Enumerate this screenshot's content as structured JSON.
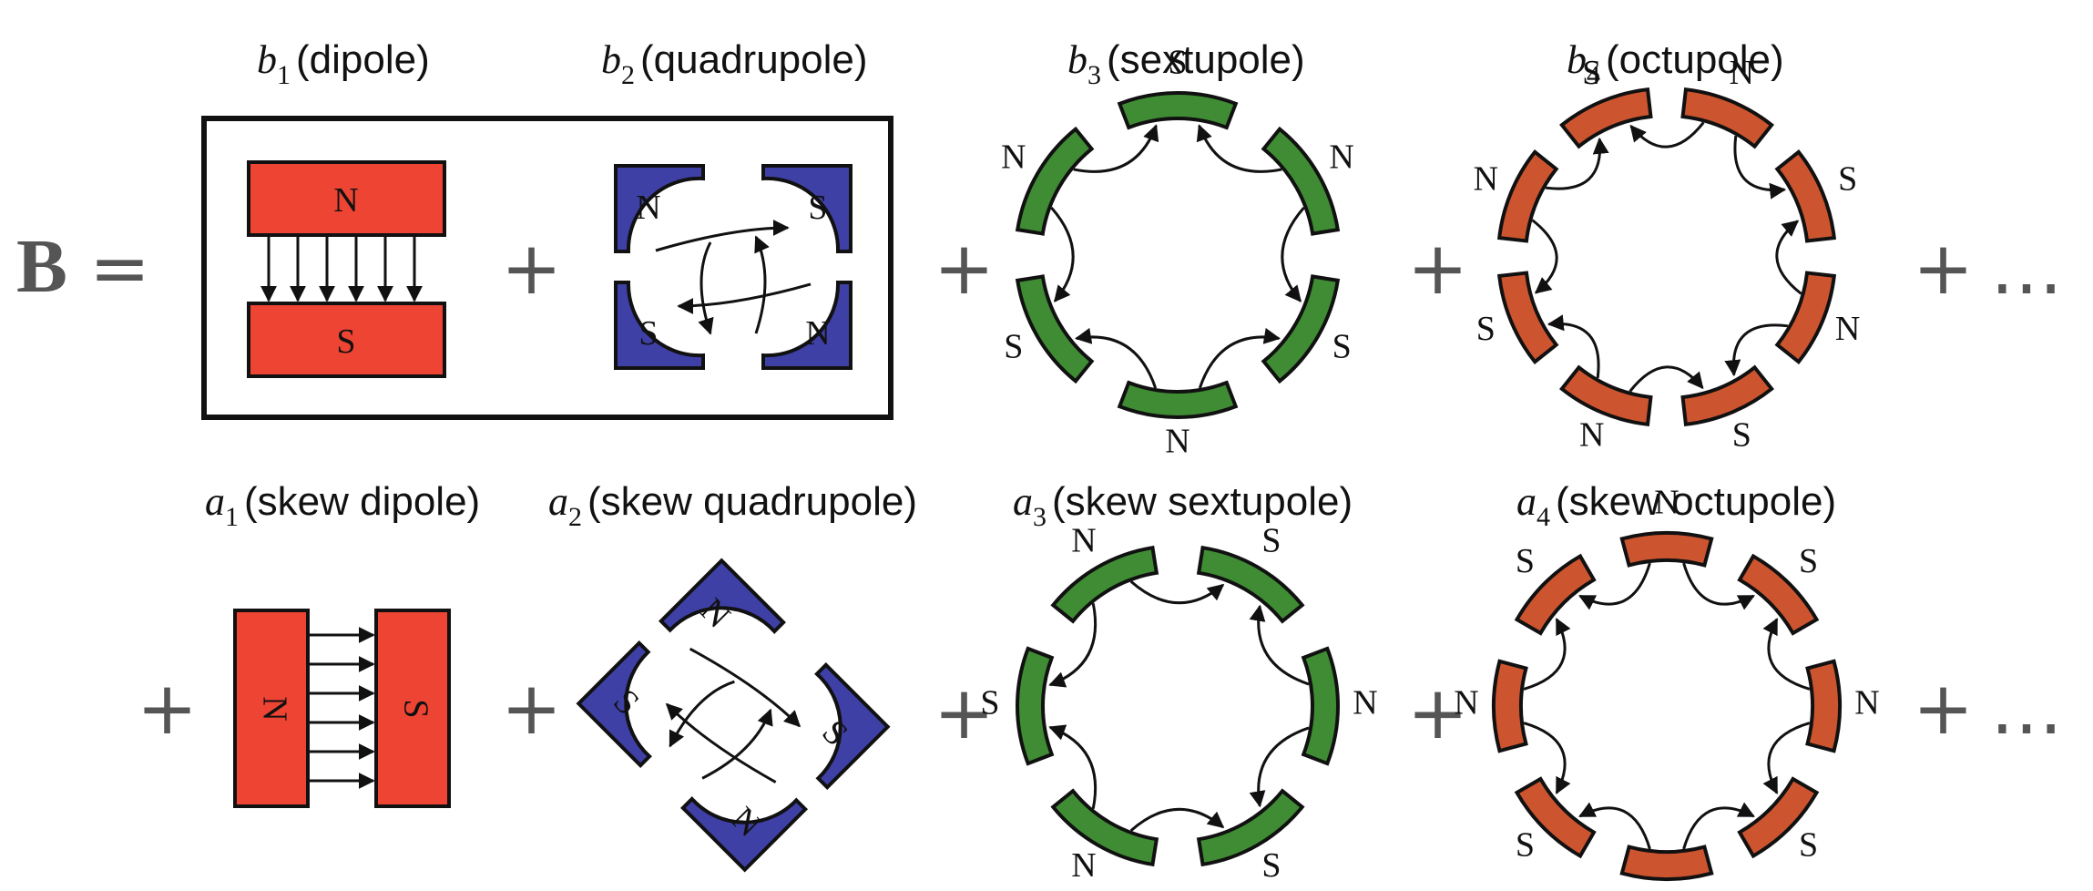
{
  "equation": {
    "lhs": "B",
    "equals": "=",
    "plus": "+",
    "ellipsis": "…"
  },
  "normal": {
    "b1": {
      "symbol": "b",
      "index": "1",
      "label": "(dipole)"
    },
    "b2": {
      "symbol": "b",
      "index": "2",
      "label": "(quadrupole)"
    },
    "b3": {
      "symbol": "b",
      "index": "3",
      "label": "(sextupole)"
    },
    "b4": {
      "symbol": "b",
      "index": "4",
      "label": "(octupole)"
    }
  },
  "skew": {
    "a1": {
      "symbol": "a",
      "index": "1",
      "label": "(skew dipole)"
    },
    "a2": {
      "symbol": "a",
      "index": "2",
      "label": "(skew quadrupole)"
    },
    "a3": {
      "symbol": "a",
      "index": "3",
      "label": "(skew sextupole)"
    },
    "a4": {
      "symbol": "a",
      "index": "4",
      "label": "(skew octupole)"
    }
  },
  "poles": {
    "north": "N",
    "south": "S"
  },
  "colors": {
    "dipole": "#ee4433",
    "quadrupole": "#3e40a6",
    "sextupole": "#3f8c34",
    "octupole": "#cc5530",
    "outline": "#111111"
  }
}
